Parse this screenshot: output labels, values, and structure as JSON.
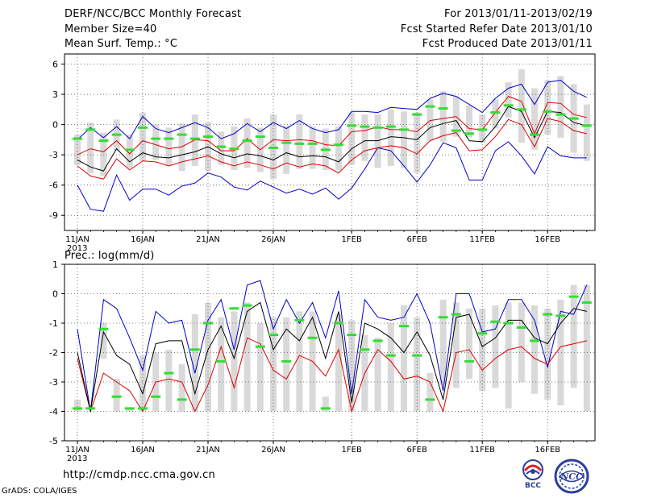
{
  "header": {
    "title": "DERF/NCC/BCC Monthly Forecast",
    "member_size": "Member Size=40",
    "period": "For 2013/01/11-2013/02/19",
    "fcst_start": "Fcst Started Refer Date 2013/01/10",
    "fcst_produced": "Fcst Produced Date 2013/01/11"
  },
  "footer": {
    "url": "http://cmdp.ncc.cma.gov.cn",
    "credit": "GrADS: COLA/IGES",
    "logo_left_text": "BCC",
    "logo_right_text": "NCC"
  },
  "colors": {
    "envelope": "#0000cc",
    "quartile": "#dd0000",
    "median": "#000000",
    "box": "#d9d9d9",
    "observed": "#33dd33",
    "grid": "#555555"
  },
  "chart_data": [
    {
      "type": "box-spread",
      "title": "Mean Surf. Temp.: °C",
      "xlabel": "",
      "ylabel": "",
      "ylim": [
        -10.5,
        7
      ],
      "yticks": [
        6,
        3,
        0,
        -3,
        -6,
        -9
      ],
      "xticks": [
        {
          "day": 1,
          "label": "11JAN",
          "sub": "2013"
        },
        {
          "day": 6,
          "label": "16JAN"
        },
        {
          "day": 11,
          "label": "21JAN"
        },
        {
          "day": 16,
          "label": "26JAN"
        },
        {
          "day": 22,
          "label": "1FEB"
        },
        {
          "day": 27,
          "label": "6FEB"
        },
        {
          "day": 32,
          "label": "11FEB"
        },
        {
          "day": 37,
          "label": "16FEB"
        }
      ],
      "x": [
        1,
        2,
        3,
        4,
        5,
        6,
        7,
        8,
        9,
        10,
        11,
        12,
        13,
        14,
        15,
        16,
        17,
        18,
        19,
        20,
        21,
        22,
        23,
        24,
        25,
        26,
        27,
        28,
        29,
        30,
        31,
        32,
        33,
        34,
        35,
        36,
        37,
        38,
        39,
        40
      ],
      "series": [
        {
          "name": "max",
          "color": "blue",
          "values": [
            -1.5,
            -0.3,
            -1.3,
            -0.2,
            -1.4,
            0.8,
            -0.4,
            -0.8,
            -0.3,
            0.2,
            -0.3,
            -1.4,
            -0.9,
            0.1,
            -0.7,
            0.2,
            -0.4,
            0.4,
            -0.4,
            -0.8,
            -0.5,
            1.3,
            1.3,
            1.2,
            1.7,
            1.6,
            1.5,
            2.6,
            3.1,
            2.8,
            2.0,
            1.2,
            2.6,
            3.6,
            4.0,
            2.0,
            4.2,
            4.4,
            3.3,
            2.7
          ]
        },
        {
          "name": "upper-quartile",
          "color": "red",
          "values": [
            -3.0,
            -2.4,
            -2.7,
            -1.6,
            -2.9,
            -1.6,
            -2.0,
            -2.4,
            -2.2,
            -1.5,
            -1.6,
            -2.6,
            -2.6,
            -1.4,
            -2.5,
            -1.5,
            -1.6,
            -1.5,
            -1.6,
            -2.0,
            -2.1,
            -0.7,
            -0.6,
            -0.2,
            -0.5,
            -0.5,
            -0.7,
            0.4,
            0.6,
            0.8,
            -0.4,
            -0.5,
            1.2,
            2.8,
            2.3,
            -0.9,
            2.2,
            2.1,
            1.0,
            0.7
          ]
        },
        {
          "name": "median",
          "color": "black",
          "values": [
            -3.5,
            -4.2,
            -4.6,
            -2.4,
            -3.7,
            -2.8,
            -3.2,
            -3.3,
            -3.0,
            -2.7,
            -2.2,
            -2.9,
            -3.3,
            -2.9,
            -3.1,
            -3.5,
            -2.8,
            -3.2,
            -3.1,
            -3.2,
            -3.7,
            -2.4,
            -1.6,
            -1.6,
            -1.2,
            -1.3,
            -1.5,
            -0.3,
            0.1,
            0.4,
            -1.6,
            -1.7,
            -0.2,
            1.8,
            1.3,
            -1.3,
            1.3,
            1.2,
            0.2,
            -0.1
          ]
        },
        {
          "name": "lower-quartile",
          "color": "red",
          "values": [
            -4.1,
            -5.1,
            -5.4,
            -3.4,
            -4.5,
            -3.6,
            -3.7,
            -4.1,
            -3.7,
            -3.4,
            -3.1,
            -3.7,
            -4.1,
            -3.7,
            -4.0,
            -4.4,
            -3.8,
            -4.2,
            -3.9,
            -4.1,
            -4.8,
            -3.5,
            -2.6,
            -2.3,
            -2.1,
            -2.3,
            -2.9,
            -1.6,
            -1.1,
            -0.8,
            -2.6,
            -2.5,
            -1.2,
            0.5,
            0.0,
            -2.2,
            0.6,
            0.3,
            -0.6,
            -0.9
          ]
        },
        {
          "name": "min",
          "color": "blue",
          "values": [
            -6.0,
            -8.4,
            -8.6,
            -5.0,
            -7.5,
            -6.4,
            -6.4,
            -7.0,
            -6.1,
            -5.8,
            -4.8,
            -5.2,
            -6.2,
            -6.5,
            -5.6,
            -6.2,
            -6.8,
            -6.4,
            -6.9,
            -6.3,
            -7.4,
            -6.3,
            -4.4,
            -2.3,
            -2.6,
            -4.1,
            -5.7,
            -4.0,
            -1.8,
            -2.3,
            -5.5,
            -5.5,
            -2.6,
            -1.7,
            -3.1,
            -4.9,
            -2.2,
            -3.1,
            -3.3,
            -3.3
          ]
        },
        {
          "name": "observed",
          "color": "green",
          "values": [
            -1.4,
            -0.5,
            -1.6,
            -1.0,
            -2.5,
            -0.3,
            -1.4,
            -1.4,
            -1.0,
            -1.4,
            -1.2,
            -2.2,
            -2.4,
            -1.6,
            -1.2,
            -2.3,
            -1.8,
            -1.9,
            -1.9,
            -2.5,
            -2.0,
            -0.1,
            -0.2,
            -0.3,
            -0.2,
            -0.5,
            1.0,
            1.8,
            1.6,
            -0.6,
            -0.9,
            -0.5,
            1.2,
            1.9,
            1.5,
            -1.0,
            1.3,
            1.0,
            0.6,
            -0.1
          ]
        },
        {
          "name": "box-high",
          "color": "gray",
          "values": [
            -1.0,
            0.2,
            -0.8,
            0.5,
            -1.0,
            1.2,
            0.0,
            -0.3,
            0.1,
            1.0,
            0.2,
            -0.7,
            -0.2,
            0.6,
            -0.3,
            1.0,
            -0.1,
            1.0,
            -0.2,
            -0.4,
            -0.2,
            1.2,
            1.0,
            1.0,
            1.5,
            1.3,
            1.2,
            2.5,
            3.3,
            2.8,
            1.9,
            1.0,
            2.5,
            4.2,
            5.5,
            3.6,
            4.4,
            4.8,
            4.0,
            2.0
          ]
        },
        {
          "name": "box-low",
          "color": "gray",
          "values": [
            -4.0,
            -4.8,
            -5.1,
            -2.6,
            -4.3,
            -3.6,
            -3.5,
            -4.1,
            -4.6,
            -4.1,
            -4.6,
            -4.0,
            -4.5,
            -4.3,
            -4.7,
            -5.4,
            -4.9,
            -4.4,
            -4.4,
            -4.5,
            -4.5,
            -4.0,
            -3.6,
            -4.3,
            -4.1,
            -4.3,
            -4.8,
            -1.6,
            -1.7,
            -1.2,
            -1.3,
            -1.8,
            -0.4,
            0.7,
            -1.8,
            -2.5,
            -1.0,
            -1.3,
            -2.8,
            -3.6
          ]
        }
      ]
    },
    {
      "type": "box-spread",
      "title": "Prec.: log(mm/d)",
      "xlabel": "",
      "ylabel": "",
      "ylim": [
        -5,
        1
      ],
      "yticks": [
        1,
        0,
        -1,
        -2,
        -3,
        -4,
        -5
      ],
      "xticks": [
        {
          "day": 1,
          "label": "11JAN",
          "sub": "2013"
        },
        {
          "day": 6,
          "label": "16JAN"
        },
        {
          "day": 11,
          "label": "21JAN"
        },
        {
          "day": 16,
          "label": "26JAN"
        },
        {
          "day": 22,
          "label": "1FEB"
        },
        {
          "day": 27,
          "label": "6FEB"
        },
        {
          "day": 32,
          "label": "11FEB"
        },
        {
          "day": 37,
          "label": "16FEB"
        }
      ],
      "x": [
        1,
        2,
        3,
        4,
        5,
        6,
        7,
        8,
        9,
        10,
        11,
        12,
        13,
        14,
        15,
        16,
        17,
        18,
        19,
        20,
        21,
        22,
        23,
        24,
        25,
        26,
        27,
        28,
        29,
        30,
        31,
        32,
        33,
        34,
        35,
        36,
        37,
        38,
        39,
        40
      ],
      "series": [
        {
          "name": "max",
          "color": "blue",
          "values": [
            -1.2,
            -4.0,
            -0.2,
            -0.5,
            -1.5,
            -2.6,
            -0.6,
            -1.0,
            -0.9,
            -2.7,
            -0.9,
            -0.2,
            -1.9,
            0.3,
            0.45,
            -1.2,
            -0.2,
            -1.0,
            -0.3,
            -1.5,
            0.1,
            -3.4,
            -0.2,
            -0.8,
            -0.9,
            -0.8,
            0.0,
            -1.0,
            -3.3,
            0.0,
            0.0,
            -1.3,
            -1.2,
            -0.2,
            -0.2,
            -0.9,
            -2.5,
            -0.6,
            -0.7,
            0.3
          ]
        },
        {
          "name": "median",
          "color": "black",
          "values": [
            -2.0,
            -4.0,
            -1.3,
            -2.1,
            -2.4,
            -3.4,
            -1.7,
            -1.6,
            -1.6,
            -3.4,
            -1.9,
            -1.1,
            -2.2,
            -0.6,
            -0.3,
            -1.9,
            -1.2,
            -1.6,
            -0.8,
            -2.2,
            -0.6,
            -3.7,
            -1.0,
            -1.2,
            -1.5,
            -2.0,
            -1.3,
            -2.1,
            -3.6,
            -0.8,
            -0.7,
            -1.8,
            -1.5,
            -0.9,
            -0.9,
            -1.5,
            -1.7,
            -1.0,
            -0.5,
            -0.6
          ]
        },
        {
          "name": "lower-quartile",
          "color": "red",
          "values": [
            -2.2,
            -4.0,
            -2.7,
            -3.0,
            -3.3,
            -4.0,
            -3.0,
            -2.9,
            -3.0,
            -4.0,
            -3.1,
            -1.8,
            -3.2,
            -1.5,
            -1.7,
            -2.6,
            -2.9,
            -2.1,
            -2.3,
            -2.8,
            -1.9,
            -4.0,
            -2.7,
            -1.9,
            -2.3,
            -2.9,
            -2.8,
            -3.0,
            -4.0,
            -2.0,
            -1.9,
            -2.6,
            -2.2,
            -1.9,
            -1.8,
            -2.2,
            -2.4,
            -1.8,
            -1.7,
            -1.6
          ]
        },
        {
          "name": "observed",
          "color": "green",
          "values": [
            -3.9,
            -3.9,
            -1.2,
            -3.5,
            -3.9,
            -3.9,
            -3.5,
            -2.7,
            -3.6,
            -1.9,
            -1.0,
            -2.3,
            -0.5,
            -0.4,
            -1.8,
            -1.4,
            -2.3,
            -0.9,
            -1.5,
            -3.9,
            -1.0,
            -1.4,
            -1.9,
            -1.6,
            -2.1,
            -1.1,
            -2.1,
            -3.6,
            -0.8,
            -0.7,
            -2.3,
            -1.35,
            -0.95,
            -1.0,
            -1.15,
            -1.6,
            -0.7,
            -0.75,
            -0.1,
            -0.3
          ]
        },
        {
          "name": "box-high",
          "color": "gray",
          "values": [
            -3.6,
            -4.0,
            -1.0,
            -2.9,
            -3.9,
            -2.1,
            -2.0,
            -1.9,
            -2.4,
            -0.7,
            -0.3,
            -0.8,
            -0.6,
            -0.3,
            -1.0,
            -0.8,
            -0.8,
            -0.6,
            -0.6,
            -3.5,
            -0.7,
            -0.9,
            -1.4,
            -1.5,
            -1.0,
            -0.4,
            -0.8,
            -2.7,
            -0.2,
            -0.3,
            -0.5,
            -0.5,
            -0.4,
            -0.3,
            -0.3,
            -0.4,
            -0.5,
            -0.2,
            0.3,
            0.3
          ]
        },
        {
          "name": "box-low",
          "color": "gray",
          "values": [
            -4.0,
            -4.0,
            -2.2,
            -4.0,
            -4.0,
            -4.0,
            -4.0,
            -4.0,
            -4.0,
            -4.0,
            -4.0,
            -4.0,
            -4.0,
            -4.0,
            -4.0,
            -4.0,
            -4.0,
            -4.0,
            -4.0,
            -4.0,
            -4.0,
            -4.0,
            -4.0,
            -4.0,
            -4.0,
            -4.0,
            -4.0,
            -4.0,
            -3.1,
            -3.2,
            -2.9,
            -3.3,
            -3.2,
            -3.9,
            -3.0,
            -3.4,
            -3.6,
            -3.8,
            -3.2,
            -4.0
          ]
        }
      ]
    }
  ]
}
